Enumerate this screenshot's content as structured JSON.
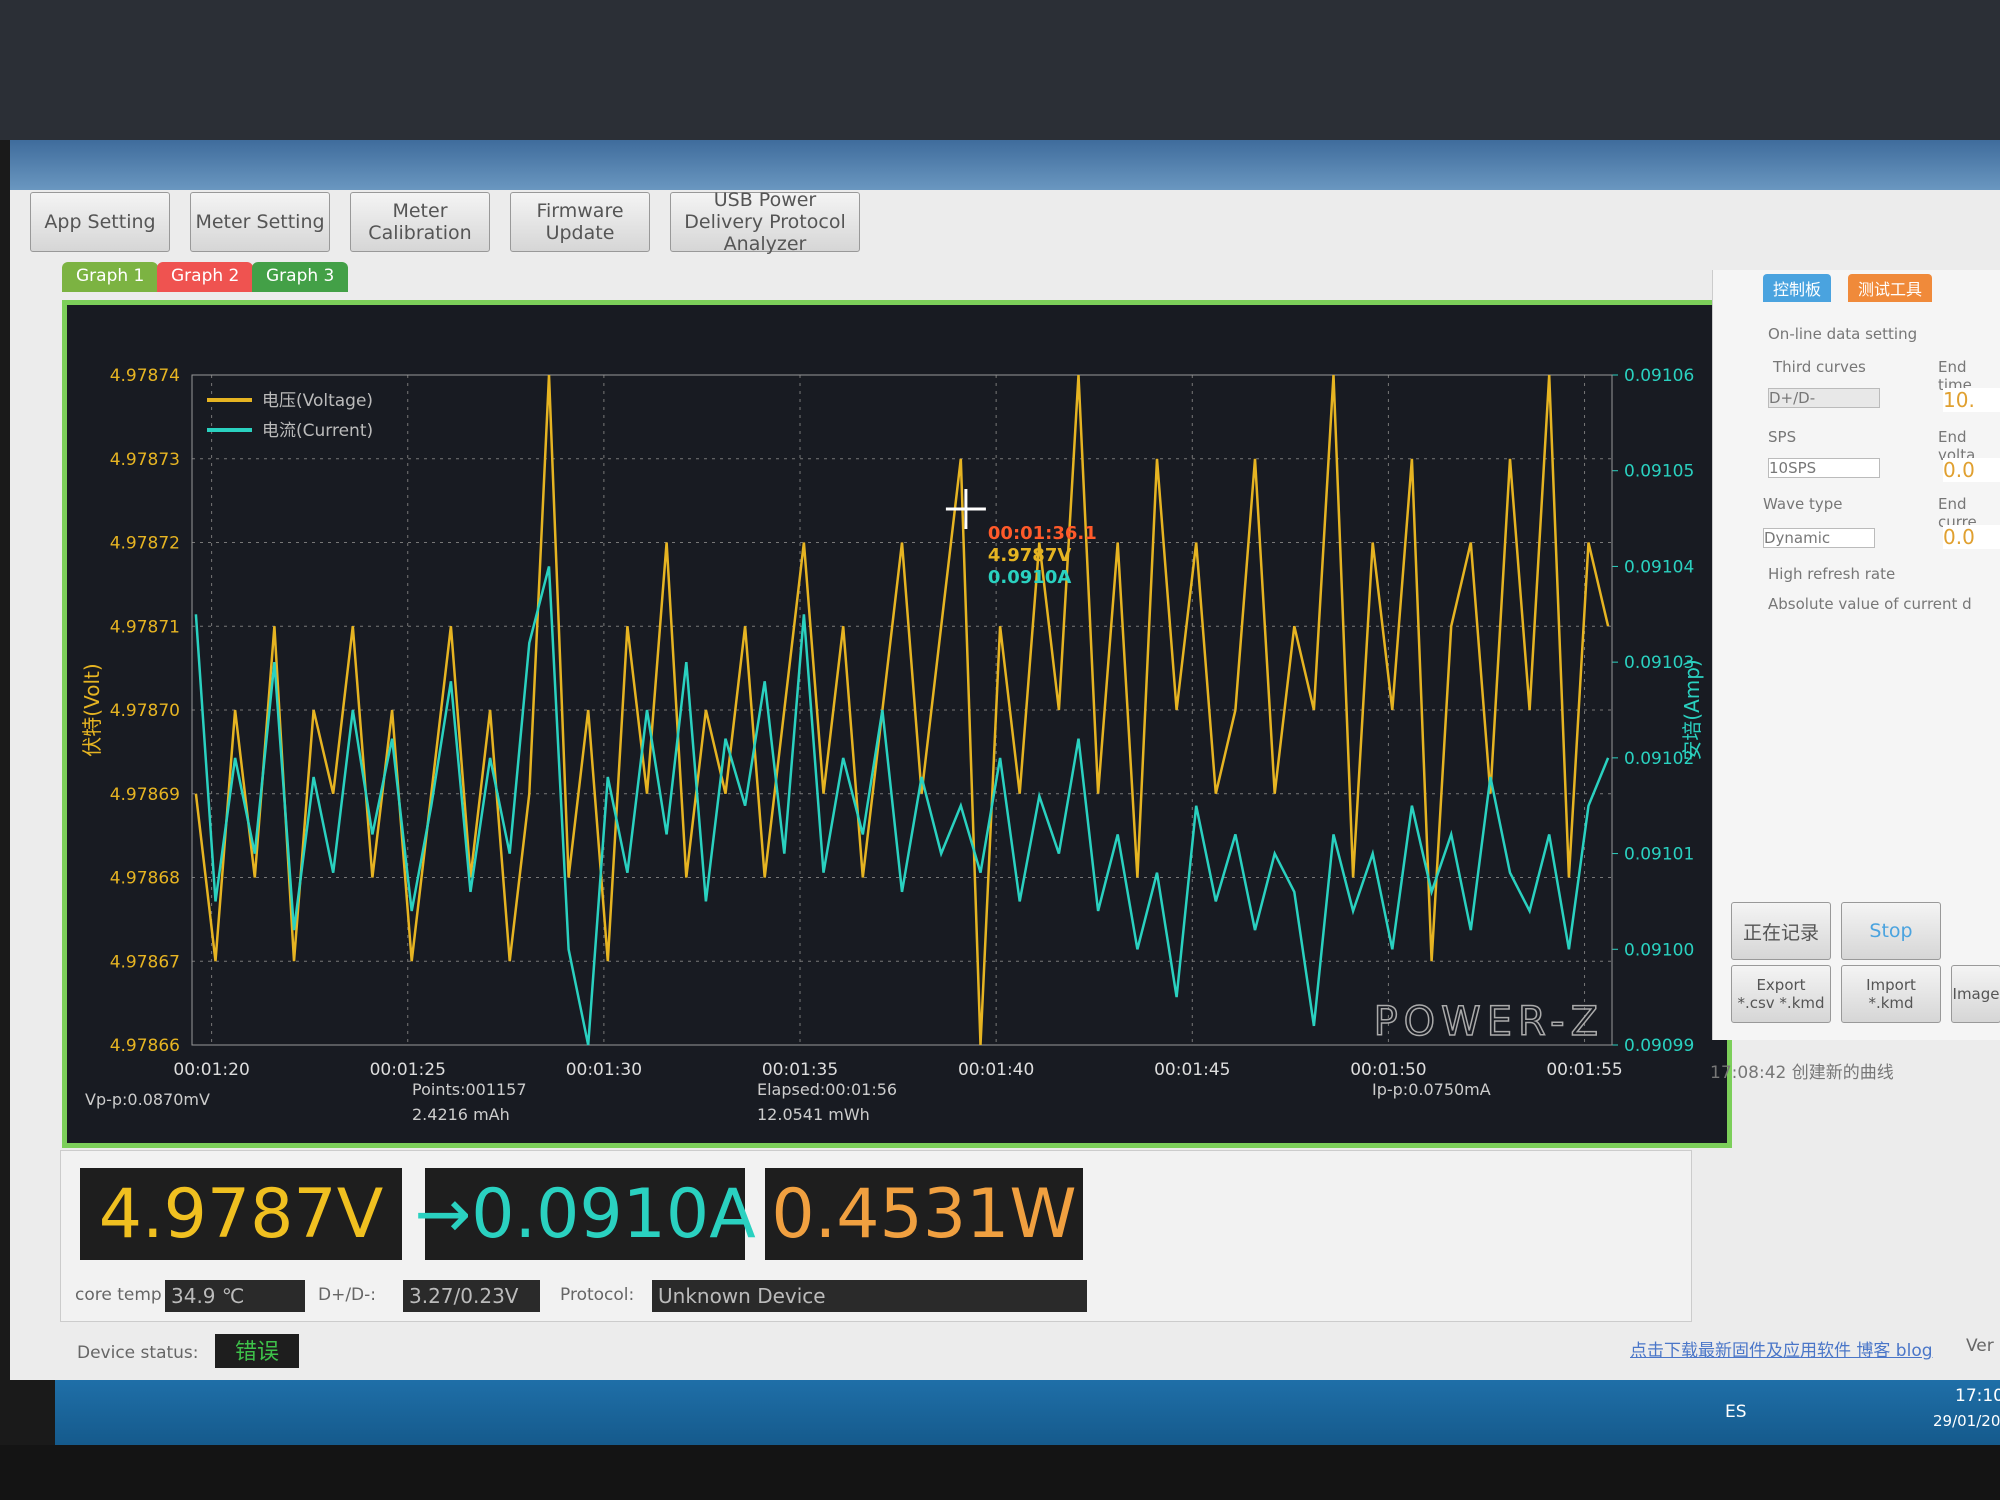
{
  "toolbar": {
    "buttons": [
      "App Setting",
      "Meter Setting",
      "Meter Calibration",
      "Firmware Update",
      "USB Power Delivery Protocol Analyzer"
    ]
  },
  "graph_tabs": [
    "Graph 1",
    "Graph 2",
    "Graph 3"
  ],
  "chart_data": {
    "type": "line",
    "y_label": "伏特(Volt)",
    "y2_label": "安培(Amp)",
    "x": [
      79.6,
      80.1,
      80.6,
      81.1,
      81.6,
      82.1,
      82.6,
      83.1,
      83.6,
      84.1,
      84.6,
      85.1,
      85.6,
      86.1,
      86.6,
      87.1,
      87.6,
      88.1,
      88.6,
      89.1,
      89.6,
      90.1,
      90.6,
      91.1,
      91.6,
      92.1,
      92.6,
      93.1,
      93.6,
      94.1,
      94.6,
      95.1,
      95.6,
      96.1,
      96.6,
      97.1,
      97.6,
      98.1,
      98.6,
      99.1,
      99.6,
      100.1,
      100.6,
      101.1,
      101.6,
      102.1,
      102.6,
      103.1,
      103.6,
      104.1,
      104.6,
      105.1,
      105.6,
      106.1,
      106.6,
      107.1,
      107.6,
      108.1,
      108.6,
      109.1,
      109.6,
      110.1,
      110.6,
      111.1,
      111.6,
      112.1,
      112.6,
      113.1,
      113.6,
      114.1,
      114.6,
      115.1,
      115.6
    ],
    "xlim": [
      79.5,
      115.7
    ],
    "xticks": [
      {
        "value": 80,
        "label": "00:01:20"
      },
      {
        "value": 85,
        "label": "00:01:25"
      },
      {
        "value": 90,
        "label": "00:01:30"
      },
      {
        "value": 95,
        "label": "00:01:35"
      },
      {
        "value": 100,
        "label": "00:01:40"
      },
      {
        "value": 105,
        "label": "00:01:45"
      },
      {
        "value": 110,
        "label": "00:01:50"
      },
      {
        "value": 115,
        "label": "00:01:55"
      }
    ],
    "ylim": [
      4.97866,
      4.97874
    ],
    "yticks": [
      4.97866,
      4.97867,
      4.97868,
      4.97869,
      {
        "value": 4.9787,
        "label": "4.97870"
      },
      4.97871,
      4.97872,
      4.97873,
      4.97874
    ],
    "y2lim": [
      0.09099,
      0.09106
    ],
    "y2ticks": [
      0.09099,
      {
        "value": 0.091,
        "label": "0.09100"
      },
      0.09101,
      0.09102,
      0.09103,
      0.09104,
      0.09105,
      0.09106
    ],
    "grid": true,
    "legend": "upper left",
    "series": [
      {
        "name": "电压(Voltage)",
        "color": "#e6b422",
        "values": [
          4.97869,
          4.97867,
          4.9787,
          4.97868,
          4.97871,
          4.97867,
          4.9787,
          4.97869,
          4.97871,
          4.97868,
          4.9787,
          4.97867,
          4.97869,
          4.97871,
          4.97868,
          4.9787,
          4.97867,
          4.97869,
          4.97874,
          4.97868,
          4.9787,
          4.97867,
          4.97871,
          4.97869,
          4.97872,
          4.97868,
          4.9787,
          4.97869,
          4.97871,
          4.97868,
          4.9787,
          4.97872,
          4.97869,
          4.97871,
          4.97868,
          4.9787,
          4.97872,
          4.97869,
          4.97871,
          4.97873,
          4.97866,
          4.97871,
          4.97869,
          4.97872,
          4.9787,
          4.97874,
          4.97869,
          4.97872,
          4.97868,
          4.97873,
          4.9787,
          4.97872,
          4.97869,
          4.9787,
          4.97873,
          4.97869,
          4.97871,
          4.9787,
          4.97874,
          4.97868,
          4.97872,
          4.9787,
          4.97873,
          4.97867,
          4.97871,
          4.97872,
          4.97869,
          4.97873,
          4.9787,
          4.97874,
          4.97868,
          4.97872,
          4.97871
        ]
      },
      {
        "name": "电流(Current)",
        "color": "#2ad1c0",
        "axis": "y2",
        "values": [
          0.091035,
          0.091005,
          0.09102,
          0.09101,
          0.09103,
          0.091002,
          0.091018,
          0.091008,
          0.091025,
          0.091012,
          0.091022,
          0.091004,
          0.091015,
          0.091028,
          0.091006,
          0.09102,
          0.09101,
          0.091032,
          0.09104,
          0.091,
          0.09099,
          0.091018,
          0.091008,
          0.091025,
          0.091012,
          0.09103,
          0.091005,
          0.091022,
          0.091015,
          0.091028,
          0.09101,
          0.091035,
          0.091008,
          0.09102,
          0.091012,
          0.091025,
          0.091006,
          0.091018,
          0.09101,
          0.091015,
          0.091008,
          0.09102,
          0.091005,
          0.091016,
          0.09101,
          0.091022,
          0.091004,
          0.091012,
          0.091,
          0.091008,
          0.090995,
          0.091015,
          0.091005,
          0.091012,
          0.091002,
          0.09101,
          0.091006,
          0.090992,
          0.091012,
          0.091004,
          0.09101,
          0.091,
          0.091015,
          0.091006,
          0.091012,
          0.091002,
          0.091018,
          0.091008,
          0.091004,
          0.091012,
          0.091,
          0.091015,
          0.09102
        ]
      }
    ],
    "annotations": [
      "00:01:36.1",
      "4.9787V",
      "0.0910A"
    ],
    "watermark": "POWER-Z",
    "stats": [
      "Vp-p:0.0870mV",
      "Points:001157",
      "2.4216 mAh",
      "Elapsed:00:01:56",
      "12.0541 mWh",
      "Ip-p:0.0750mA"
    ]
  },
  "readouts": {
    "voltage": "4.9787V",
    "current": "→0.0910A",
    "power": "0.4531W"
  },
  "info": {
    "core_temp_label": "core temp",
    "core_temp": "34.9 ℃",
    "dpdm_label": "D+/D-:",
    "dpdm": "3.27/0.23V",
    "protocol_label": "Protocol:",
    "protocol": "Unknown Device",
    "status_label": "Device status:",
    "status": "错误"
  },
  "side_panel": {
    "tabs": [
      "控制板",
      "测试工具"
    ],
    "section": "On-line data setting",
    "third_curves": "Third curves",
    "third_select": "D+/D-",
    "sps_label": "SPS",
    "sps": "10SPS",
    "wave_label": "Wave type",
    "wave": "Dynamic",
    "high_refresh": "High refresh rate",
    "absolute": "Absolute value of current d",
    "end_time": "End time",
    "end_time_value": "10.",
    "end_volt": "End volta",
    "end_volt_value": "0.0",
    "end_curr": "End curre",
    "end_curr_value": "0.0",
    "buttons": [
      "正在记录",
      "Stop",
      "Export *.csv *.kmd",
      "Import *.kmd",
      "Image"
    ],
    "log": "17:08:42 创建新的曲线"
  },
  "footer_link": "点击下载最新固件及应用软件 博客 blog",
  "footer_ver": "Ver",
  "taskbar": {
    "lang": "ES",
    "time": "17:10",
    "date": "29/01/20"
  }
}
